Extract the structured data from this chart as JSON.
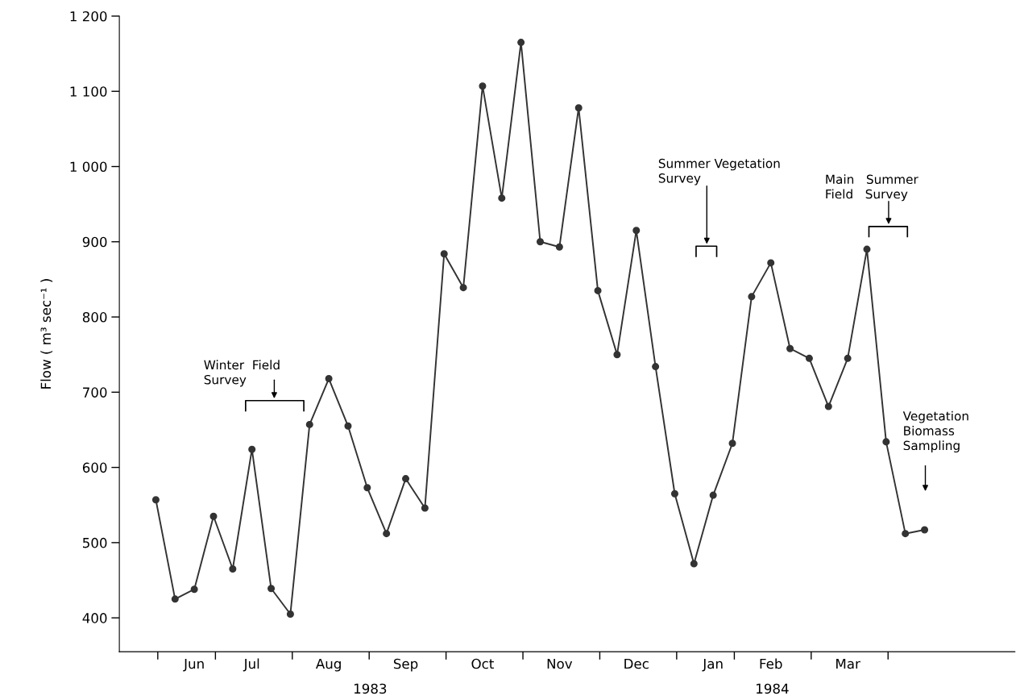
{
  "chart_data": {
    "type": "line",
    "ylabel": "Flow ( m³ sec⁻¹ )",
    "categories": [
      null,
      null,
      "Jun",
      null,
      null,
      "Jul",
      null,
      null,
      null,
      "Aug",
      null,
      null,
      null,
      "Sep",
      null,
      null,
      null,
      "Oct",
      null,
      null,
      null,
      "Nov",
      null,
      null,
      null,
      "Dec",
      null,
      null,
      null,
      "Jan",
      null,
      null,
      "Feb",
      null,
      null,
      null,
      "Mar",
      null,
      null,
      null,
      null
    ],
    "series": [
      {
        "color": "#333333",
        "values": [
          557,
          425,
          438,
          535,
          465,
          624,
          439,
          405,
          657,
          718,
          655,
          573,
          512,
          585,
          546,
          884,
          839,
          1107,
          958,
          1165,
          900,
          893,
          1078,
          835,
          750,
          915,
          734,
          565,
          472,
          563,
          632,
          827,
          872,
          758,
          745,
          681,
          745,
          890,
          634,
          512,
          517
        ]
      }
    ],
    "ylim": [
      355,
      1200
    ],
    "yticks": [
      400,
      500,
      600,
      700,
      800,
      900,
      {
        "value": 1000,
        "label": "1 000"
      },
      {
        "value": 1100,
        "label": "1 100"
      },
      {
        "value": 1200,
        "label": "1 200"
      }
    ],
    "annotations": [
      "Winter  Field\nSurvey",
      "Summer Vegetation\nSurvey",
      "Main   Summer\nField   Survey",
      "Vegetation\nBiomass\nSampling",
      "1983",
      "1984"
    ],
    "marker": "circle",
    "line_style": "solid",
    "grid": false,
    "legend": false
  }
}
